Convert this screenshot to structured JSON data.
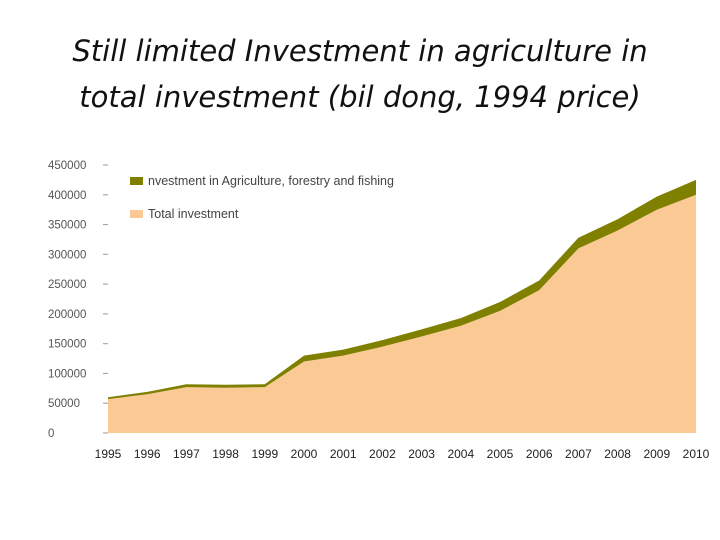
{
  "slide": {
    "title_line1": "Still limited Investment in agriculture in",
    "title_line2": "total investment (bil dong, 1994 price)"
  },
  "chart_data": {
    "type": "area",
    "stacked": true,
    "title": "Still limited Investment in agriculture in total investment (bil dong, 1994 price)",
    "x": [
      "1995",
      "1996",
      "1997",
      "1998",
      "1999",
      "2000",
      "2001",
      "2002",
      "2003",
      "2004",
      "2005",
      "2006",
      "2007",
      "2008",
      "2009",
      "2010"
    ],
    "ylim": [
      0,
      450000
    ],
    "yticks": [
      "0",
      "50000",
      "100000",
      "150000",
      "200000",
      "250000",
      "300000",
      "350000",
      "400000",
      "450000"
    ],
    "legend_position": "top-left",
    "grid": false,
    "series": [
      {
        "name": "Total investment",
        "color": "#fbc993",
        "values": [
          57000,
          65000,
          77000,
          76000,
          77000,
          120000,
          130000,
          145000,
          162000,
          180000,
          205000,
          240000,
          310000,
          340000,
          375000,
          400000
        ]
      },
      {
        "name": "nvestment in Agriculture, forestry and fishing",
        "color": "#7f7f00",
        "values": [
          3000,
          4000,
          5000,
          5000,
          5000,
          10000,
          10000,
          11000,
          12000,
          13000,
          15000,
          16000,
          18000,
          19000,
          22000,
          25000
        ]
      }
    ]
  }
}
